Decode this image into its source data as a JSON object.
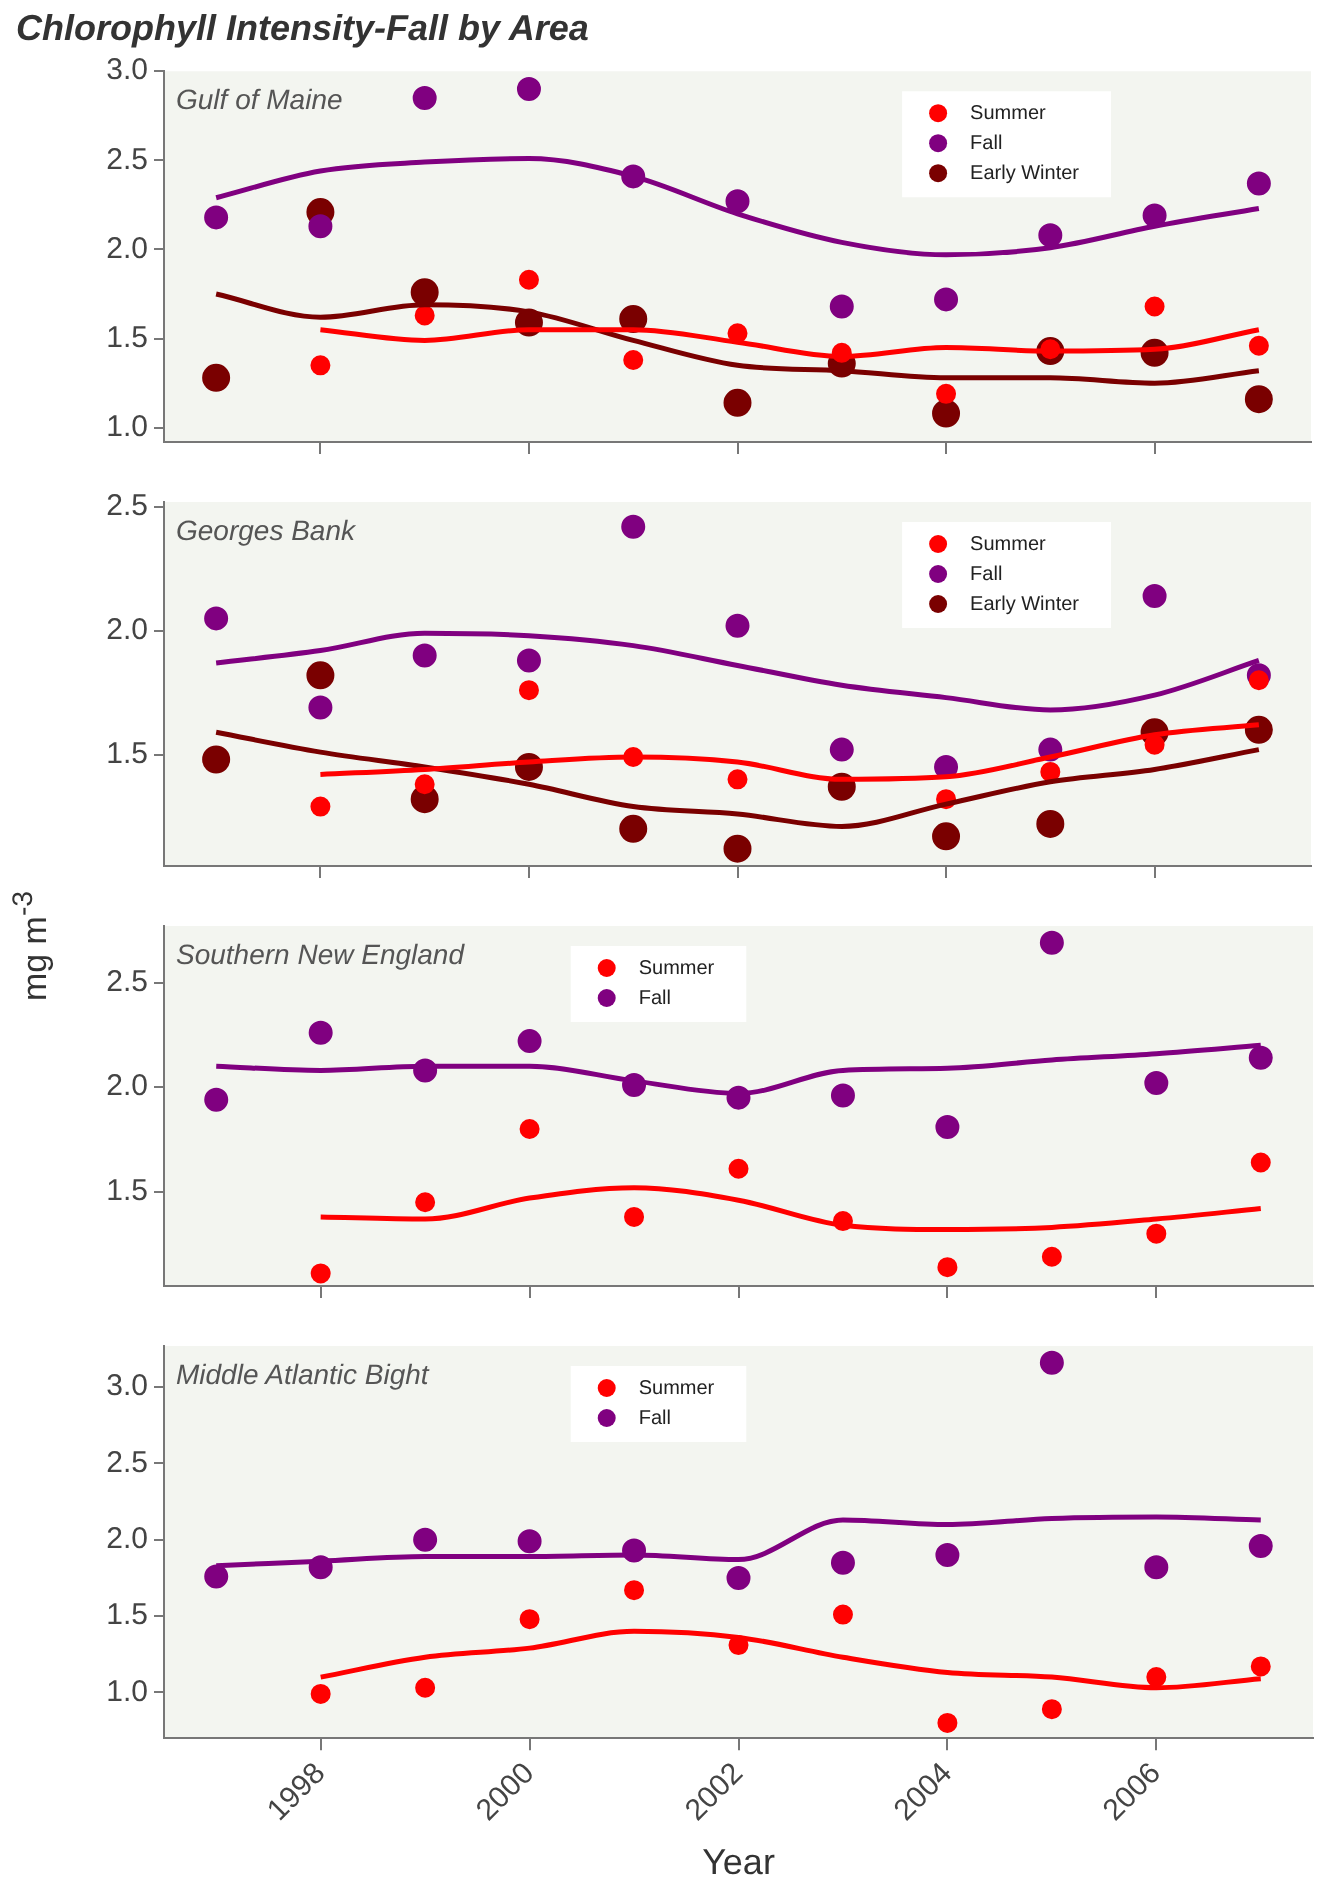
{
  "chart_data": [
    {
      "type": "scatter",
      "title": "Chlorophyll Intensity-Fall by Area",
      "subtitle": "Gulf of Maine",
      "x": [
        1997,
        1998,
        1999,
        2000,
        2001,
        2002,
        2003,
        2004,
        2005,
        2006,
        2007
      ],
      "xlim": [
        1996.5,
        2007.5
      ],
      "xticks": [
        {
          "value": 1998,
          "label": null
        },
        {
          "value": 2000,
          "label": null
        },
        {
          "value": 2002,
          "label": null
        },
        {
          "value": 2004,
          "label": null
        },
        {
          "value": 2006,
          "label": null
        }
      ],
      "ylim": [
        0.92,
        3.0
      ],
      "yticks": [
        {
          "value": 1,
          "label": "1.0"
        },
        {
          "value": 1.5,
          "label": "1.5"
        },
        {
          "value": 2,
          "label": "2.0"
        },
        {
          "value": 2.5,
          "label": "2.5"
        },
        {
          "value": 3,
          "label": "3.0"
        }
      ],
      "tick_labels": "y",
      "grid": false,
      "legend": "top right",
      "marker": "circle",
      "series": [
        {
          "name": "Summer",
          "color": "#ff0000",
          "values": [
            null,
            1.35,
            1.63,
            1.83,
            1.38,
            1.53,
            1.42,
            1.19,
            1.44,
            1.68,
            1.46
          ]
        },
        {
          "name": "Fall",
          "color": "#800080",
          "values": [
            2.18,
            2.13,
            2.85,
            2.9,
            2.41,
            2.27,
            1.68,
            1.72,
            2.08,
            2.19,
            2.37
          ]
        },
        {
          "name": "Early Winter",
          "color": "#7a0000",
          "values": [
            1.28,
            2.21,
            1.76,
            1.59,
            1.61,
            1.14,
            1.36,
            1.08,
            1.43,
            1.42,
            1.16
          ]
        },
        {
          "type": "line",
          "marker": "none",
          "color": "#ff0000",
          "values": [
            null,
            1.55,
            1.49,
            1.55,
            1.55,
            1.48,
            1.4,
            1.45,
            1.43,
            1.44,
            1.55
          ]
        },
        {
          "type": "line",
          "marker": "none",
          "color": "#800080",
          "values": [
            2.29,
            2.44,
            2.49,
            2.51,
            2.41,
            2.2,
            2.04,
            1.97,
            2.01,
            2.13,
            2.23
          ]
        },
        {
          "type": "line",
          "marker": "none",
          "color": "#7a0000",
          "values": [
            1.75,
            1.62,
            1.69,
            1.65,
            1.49,
            1.35,
            1.32,
            1.28,
            1.28,
            1.25,
            1.32
          ]
        }
      ]
    },
    {
      "type": "scatter",
      "subtitle": "Georges Bank",
      "ylabel": "mg m$^{-3}$",
      "x": [
        1997,
        1998,
        1999,
        2000,
        2001,
        2002,
        2003,
        2004,
        2005,
        2006,
        2007
      ],
      "xlim": [
        1996.5,
        2007.5
      ],
      "xticks": [
        {
          "value": 1998,
          "label": null
        },
        {
          "value": 2000,
          "label": null
        },
        {
          "value": 2002,
          "label": null
        },
        {
          "value": 2004,
          "label": null
        },
        {
          "value": 2006,
          "label": null
        }
      ],
      "ylim": [
        1.05,
        2.52
      ],
      "yticks": [
        {
          "value": 1.5,
          "label": "1.5"
        },
        {
          "value": 2,
          "label": "2.0"
        },
        {
          "value": 2.5,
          "label": "2.5"
        }
      ],
      "tick_labels": "y",
      "grid": false,
      "legend": "top right",
      "marker": "circle",
      "series": [
        {
          "name": "Summer",
          "color": "#ff0000",
          "values": [
            null,
            1.29,
            1.38,
            1.76,
            1.49,
            1.4,
            null,
            1.32,
            1.43,
            1.54,
            1.8
          ]
        },
        {
          "name": "Fall",
          "color": "#800080",
          "values": [
            2.05,
            1.69,
            1.9,
            1.88,
            2.42,
            2.02,
            1.52,
            1.45,
            1.52,
            2.14,
            1.82
          ]
        },
        {
          "name": "Early Winter",
          "color": "#7a0000",
          "values": [
            1.48,
            1.82,
            1.32,
            1.45,
            1.2,
            1.12,
            1.37,
            1.17,
            1.22,
            1.59,
            1.6
          ]
        },
        {
          "type": "line",
          "marker": "none",
          "color": "#ff0000",
          "values": [
            null,
            1.42,
            1.44,
            1.47,
            1.49,
            1.47,
            1.4,
            1.41,
            1.49,
            1.58,
            1.62
          ]
        },
        {
          "type": "line",
          "marker": "none",
          "color": "#800080",
          "values": [
            1.87,
            1.92,
            1.99,
            1.98,
            1.94,
            1.86,
            1.78,
            1.73,
            1.68,
            1.74,
            1.88
          ]
        },
        {
          "type": "line",
          "marker": "none",
          "color": "#7a0000",
          "values": [
            1.59,
            1.51,
            1.45,
            1.38,
            1.29,
            1.26,
            1.21,
            1.3,
            1.39,
            1.44,
            1.52
          ]
        }
      ]
    },
    {
      "type": "scatter",
      "subtitle": "Southern New England",
      "x": [
        1997,
        1998,
        1999,
        2000,
        2001,
        2002,
        2003,
        2004,
        2005,
        2006,
        2007
      ],
      "xlim": [
        1996.5,
        2007.5
      ],
      "xticks": [
        {
          "value": 1998,
          "label": null
        },
        {
          "value": 2000,
          "label": null
        },
        {
          "value": 2002,
          "label": null
        },
        {
          "value": 2004,
          "label": null
        },
        {
          "value": 2006,
          "label": null
        }
      ],
      "ylim": [
        1.05,
        2.77
      ],
      "yticks": [
        {
          "value": 1.5,
          "label": "1.5"
        },
        {
          "value": 2,
          "label": "2.0"
        },
        {
          "value": 2.5,
          "label": "2.5"
        }
      ],
      "tick_labels": "y",
      "grid": false,
      "legend": "top",
      "marker": "circle",
      "series": [
        {
          "name": "Summer",
          "color": "#ff0000",
          "values": [
            null,
            1.11,
            1.45,
            1.8,
            1.38,
            1.61,
            1.36,
            1.14,
            1.19,
            1.3,
            1.64
          ]
        },
        {
          "name": "Fall",
          "color": "#800080",
          "values": [
            1.94,
            2.26,
            2.08,
            2.22,
            2.01,
            1.95,
            1.96,
            1.81,
            2.69,
            2.02,
            2.14
          ]
        },
        {
          "type": "line",
          "marker": "none",
          "color": "#ff0000",
          "values": [
            null,
            1.38,
            1.37,
            1.47,
            1.52,
            1.46,
            1.34,
            1.32,
            1.33,
            1.37,
            1.42
          ]
        },
        {
          "type": "line",
          "marker": "none",
          "color": "#800080",
          "values": [
            2.1,
            2.08,
            2.1,
            2.1,
            2.03,
            1.97,
            2.08,
            2.09,
            2.13,
            2.16,
            2.2
          ]
        }
      ]
    },
    {
      "type": "scatter",
      "subtitle": "Middle Atlantic Bight",
      "xlabel": "Year",
      "x": [
        1997,
        1998,
        1999,
        2000,
        2001,
        2002,
        2003,
        2004,
        2005,
        2006,
        2007
      ],
      "xlim": [
        1996.5,
        2007.5
      ],
      "xticks": [
        1998,
        2000,
        2002,
        2004,
        2006
      ],
      "ylim": [
        0.7,
        3.27
      ],
      "yticks": [
        {
          "value": 1,
          "label": "1.0"
        },
        {
          "value": 1.5,
          "label": "1.5"
        },
        {
          "value": 2,
          "label": "2.0"
        },
        {
          "value": 2.5,
          "label": "2.5"
        },
        {
          "value": 3,
          "label": "3.0"
        }
      ],
      "grid": false,
      "legend": "top",
      "marker": "circle",
      "series": [
        {
          "name": "Summer",
          "color": "#ff0000",
          "values": [
            null,
            0.99,
            1.03,
            1.48,
            1.67,
            1.31,
            1.51,
            0.8,
            0.89,
            1.1,
            1.17
          ]
        },
        {
          "name": "Fall",
          "color": "#800080",
          "values": [
            1.76,
            1.82,
            2.0,
            1.99,
            1.93,
            1.75,
            1.85,
            1.9,
            3.16,
            1.82,
            1.96
          ]
        },
        {
          "type": "line",
          "marker": "none",
          "color": "#ff0000",
          "values": [
            null,
            1.1,
            1.23,
            1.29,
            1.4,
            1.36,
            1.23,
            1.13,
            1.1,
            1.03,
            1.09
          ]
        },
        {
          "type": "line",
          "marker": "none",
          "color": "#800080",
          "values": [
            1.83,
            1.86,
            1.89,
            1.89,
            1.9,
            1.87,
            2.13,
            2.1,
            2.14,
            2.15,
            2.13
          ]
        }
      ]
    }
  ]
}
